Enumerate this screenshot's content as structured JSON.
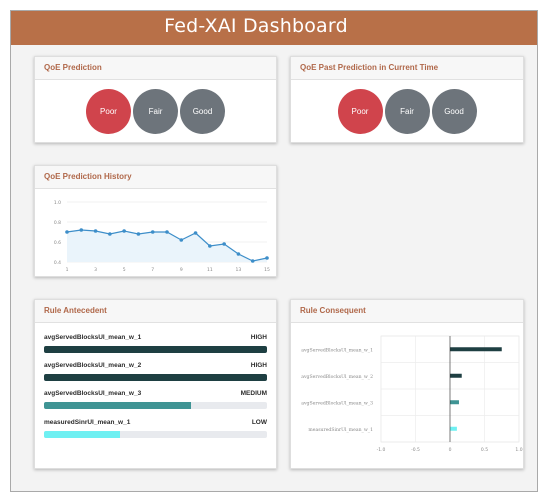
{
  "header": {
    "title": "Fed-XAI Dashboard"
  },
  "qoe_prediction": {
    "title": "QoE Prediction",
    "options": [
      {
        "label": "Poor",
        "active": true
      },
      {
        "label": "Fair",
        "active": false
      },
      {
        "label": "Good",
        "active": false
      }
    ]
  },
  "qoe_past": {
    "title": "QoE Past Prediction in Current Time",
    "options": [
      {
        "label": "Poor",
        "active": true
      },
      {
        "label": "Fair",
        "active": false
      },
      {
        "label": "Good",
        "active": false
      }
    ]
  },
  "history": {
    "title": "QoE Prediction History"
  },
  "antecedent": {
    "title": "Rule Antecedent",
    "rules": [
      {
        "name": "avgServedBlocksUl_mean_w_1",
        "level": "HIGH",
        "value": 1.0,
        "color": "#1e3f42"
      },
      {
        "name": "avgServedBlocksUl_mean_w_2",
        "level": "HIGH",
        "value": 1.0,
        "color": "#1e3f42"
      },
      {
        "name": "avgServedBlocksUl_mean_w_3",
        "level": "MEDIUM",
        "value": 0.66,
        "color": "#3f9494"
      },
      {
        "name": "measuredSinrUl_mean_w_1",
        "level": "LOW",
        "value": 0.34,
        "color": "#6ff0f2"
      }
    ]
  },
  "consequent": {
    "title": "Rule Consequent"
  },
  "chart_data": [
    {
      "type": "line",
      "x": [
        1,
        2,
        3,
        4,
        5,
        6,
        7,
        8,
        9,
        10,
        11,
        12,
        13,
        14,
        15
      ],
      "series": [
        {
          "values": [
            0.7,
            0.72,
            0.71,
            0.68,
            0.71,
            0.68,
            0.7,
            0.7,
            0.62,
            0.69,
            0.56,
            0.58,
            0.48,
            0.41,
            0.44
          ]
        }
      ],
      "x_ticks": [
        "1",
        "3",
        "5",
        "7",
        "9",
        "11",
        "13",
        "15"
      ],
      "y_ticks": [
        "0.4",
        "0.6",
        "0.8",
        "1.0"
      ],
      "xlim": [
        1,
        15
      ],
      "ylim": [
        0.4,
        1.0
      ],
      "grid": true,
      "line_color": "#3d8ec9"
    },
    {
      "type": "bar",
      "orientation": "horizontal",
      "categories": [
        "avgServedBlocksUl_mean_w_1",
        "avgServedBlocksUl_mean_w_2",
        "avgServedBlocksUl_mean_w_3",
        "measuredSinrUl_mean_w_1"
      ],
      "values": [
        0.75,
        0.17,
        0.13,
        0.1
      ],
      "colors": [
        "#1e3f42",
        "#1e3f42",
        "#3f9494",
        "#6ff0f2"
      ],
      "x_ticks": [
        "-1.0",
        "-0.5",
        "0",
        "0.5",
        "1.0"
      ],
      "xlim": [
        -1,
        1
      ],
      "grid": true
    }
  ]
}
